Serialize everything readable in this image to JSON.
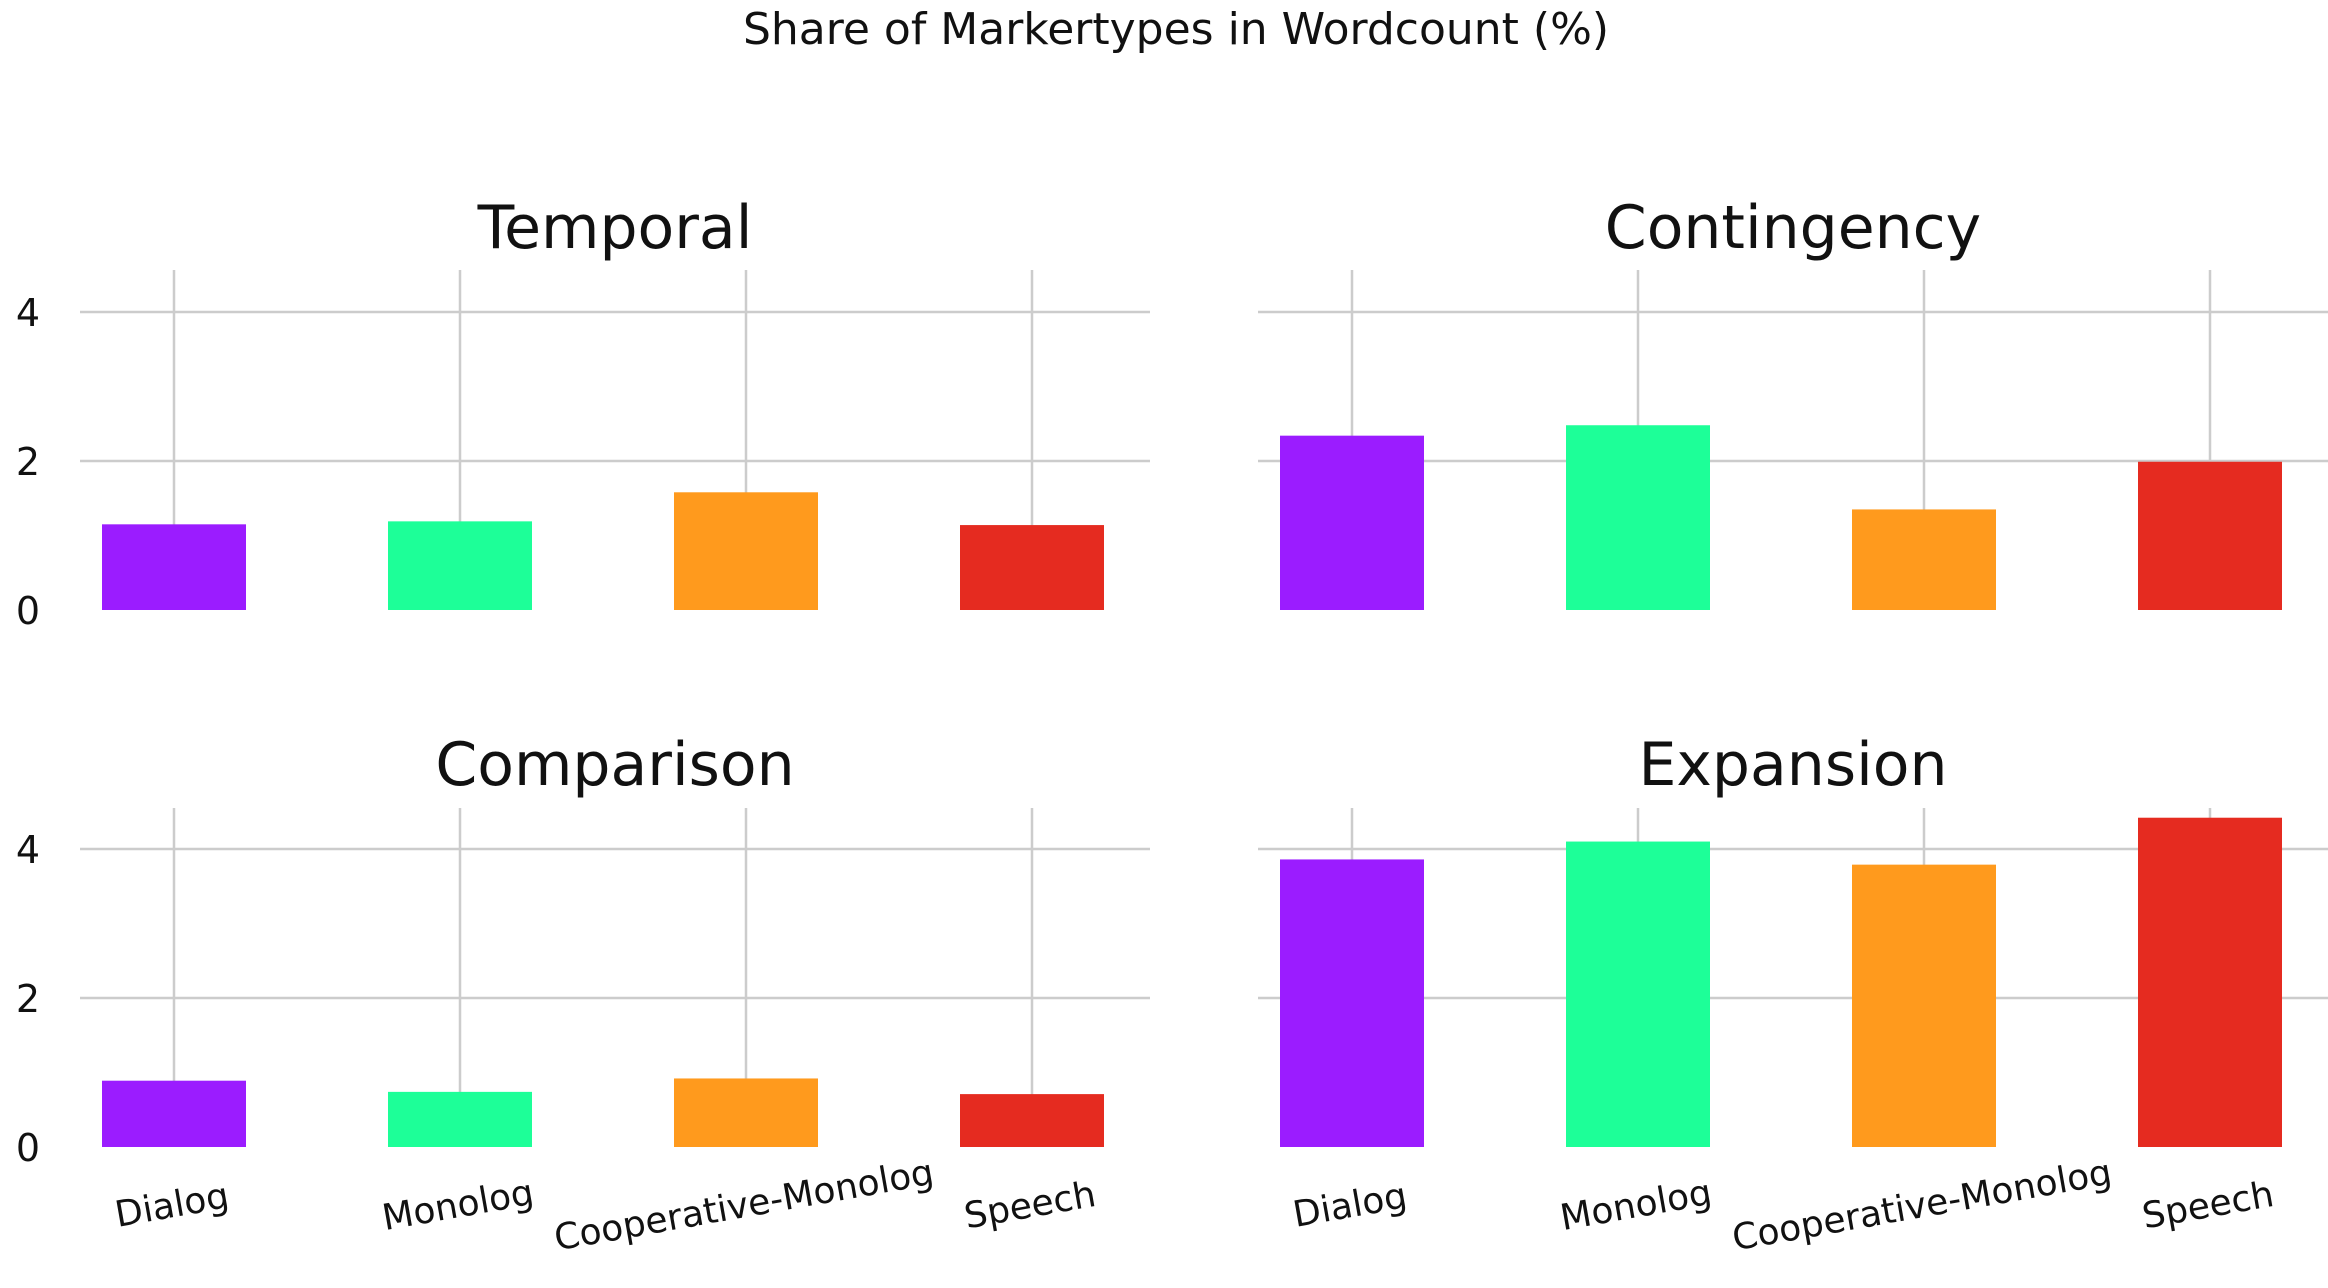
{
  "title": "Share of Markertypes in Wordcount (%)",
  "chart_data": {
    "type": "bar",
    "title": "Share of Markertypes in Wordcount (%)",
    "categories": [
      "Dialog",
      "Monolog",
      "Cooperative-Monolog",
      "Speech"
    ],
    "colors": [
      "#9b1cff",
      "#1dff98",
      "#ff9a1d",
      "#e52b20"
    ],
    "ylim": [
      0,
      4.65
    ],
    "yticks": [
      "0",
      "2",
      "4"
    ],
    "grid": true,
    "legend": "none",
    "panels": [
      {
        "title": "Temporal",
        "values": [
          1.15,
          1.19,
          1.58,
          1.14
        ]
      },
      {
        "title": "Contingency",
        "values": [
          2.34,
          2.48,
          1.35,
          1.99
        ]
      },
      {
        "title": "Comparison",
        "values": [
          0.89,
          0.74,
          0.92,
          0.71
        ]
      },
      {
        "title": "Expansion",
        "values": [
          3.86,
          4.1,
          3.79,
          4.42
        ]
      }
    ]
  }
}
